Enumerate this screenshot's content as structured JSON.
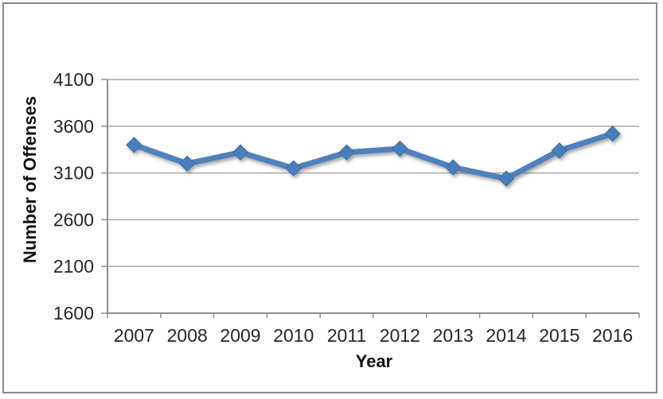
{
  "chart_data": {
    "type": "line",
    "title": "",
    "xlabel": "Year",
    "ylabel": "Number of Offenses",
    "categories": [
      "2007",
      "2008",
      "2009",
      "2010",
      "2011",
      "2012",
      "2013",
      "2014",
      "2015",
      "2016"
    ],
    "series": [
      {
        "name": "Number of Offenses",
        "values": [
          3400,
          3200,
          3320,
          3150,
          3320,
          3360,
          3160,
          3040,
          3340,
          3520
        ]
      }
    ],
    "ylim": [
      1600,
      4100
    ],
    "yticks": [
      1600,
      2100,
      2600,
      3100,
      3600,
      4100
    ],
    "ytick_interval": 500,
    "grid": "horizontal-major",
    "legend_position": "none",
    "marker": "diamond",
    "colors": {
      "line": "#4F81BD",
      "marker_fill": "#4A7EBB",
      "marker_edge": "#3A6EA5",
      "gridline": "#A9A9A9",
      "axis": "#8F8F8F",
      "tick_text": "#262626",
      "title_text": "#111111",
      "frame_border": "#8A8A8A",
      "background": "#FFFFFF"
    }
  }
}
